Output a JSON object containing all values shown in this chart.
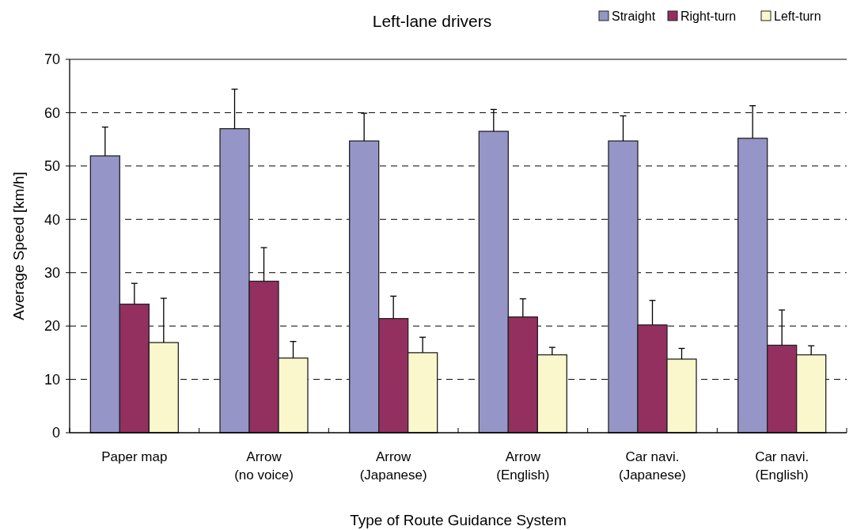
{
  "chart_data": {
    "type": "bar",
    "title": "Left-lane drivers",
    "xlabel": "Type of Route Guidance System",
    "ylabel": "Average Speed [km/h]",
    "categories": [
      "Paper map",
      "Arrow\n(no voice)",
      "Arrow\n(Japanese)",
      "Arrow\n(English)",
      "Car navi.\n(Japanese)",
      "Car navi.\n(English)"
    ],
    "series": [
      {
        "name": "Straight",
        "color": "#9595c7",
        "values": [
          51.9,
          57.0,
          54.7,
          56.5,
          54.7,
          55.2
        ],
        "errors": [
          [
            51.9,
            57.3
          ],
          [
            57.0,
            64.4
          ],
          [
            54.7,
            59.9
          ],
          [
            56.5,
            60.6
          ],
          [
            54.7,
            59.4
          ],
          [
            55.2,
            61.3
          ]
        ]
      },
      {
        "name": "Right-turn",
        "color": "#93305f",
        "values": [
          24.1,
          28.4,
          21.4,
          21.7,
          20.2,
          16.4
        ],
        "errors": [
          [
            24.1,
            28.0
          ],
          [
            28.4,
            34.7
          ],
          [
            21.4,
            25.6
          ],
          [
            21.7,
            25.1
          ],
          [
            20.2,
            24.8
          ],
          [
            16.4,
            23.0
          ]
        ]
      },
      {
        "name": "Left-turn",
        "color": "#faf7cd",
        "values": [
          16.9,
          14.0,
          15.0,
          14.6,
          13.8,
          14.6
        ],
        "errors": [
          [
            16.9,
            25.2
          ],
          [
            14.0,
            17.1
          ],
          [
            15.0,
            17.9
          ],
          [
            14.6,
            16.0
          ],
          [
            13.8,
            15.8
          ],
          [
            14.6,
            16.3
          ]
        ]
      }
    ],
    "ylim": [
      0,
      70
    ],
    "yticks": [
      0,
      10,
      20,
      30,
      40,
      50,
      60,
      70
    ],
    "grid": "y",
    "legend": "top right"
  }
}
